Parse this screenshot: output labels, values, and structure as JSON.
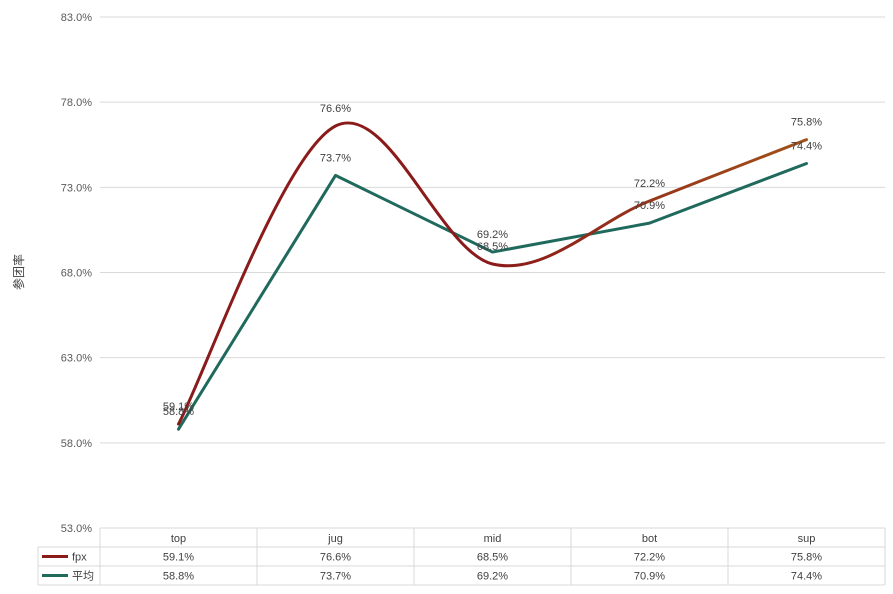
{
  "chart_data": {
    "type": "line",
    "title": "",
    "ylabel": "参团率",
    "categories": [
      "top",
      "jug",
      "mid",
      "bot",
      "sup"
    ],
    "ylim": [
      53.0,
      83.0
    ],
    "yticks": [
      "53.0%",
      "58.0%",
      "63.0%",
      "68.0%",
      "73.0%",
      "78.0%",
      "83.0%"
    ],
    "grid": true,
    "legend": "data-table",
    "series": [
      {
        "name": "fpx",
        "values": [
          59.1,
          76.6,
          68.5,
          72.2,
          75.8
        ],
        "labels": [
          "59.1%",
          "76.6%",
          "68.5%",
          "72.2%",
          "75.8%"
        ],
        "color": "#8b1a1a",
        "color_end": "#a0521a",
        "smooth": true
      },
      {
        "name": "平均",
        "values": [
          58.8,
          73.7,
          69.2,
          70.9,
          74.4
        ],
        "labels": [
          "58.8%",
          "73.7%",
          "69.2%",
          "70.9%",
          "74.4%"
        ],
        "color": "#206a5d",
        "smooth": false
      }
    ]
  }
}
